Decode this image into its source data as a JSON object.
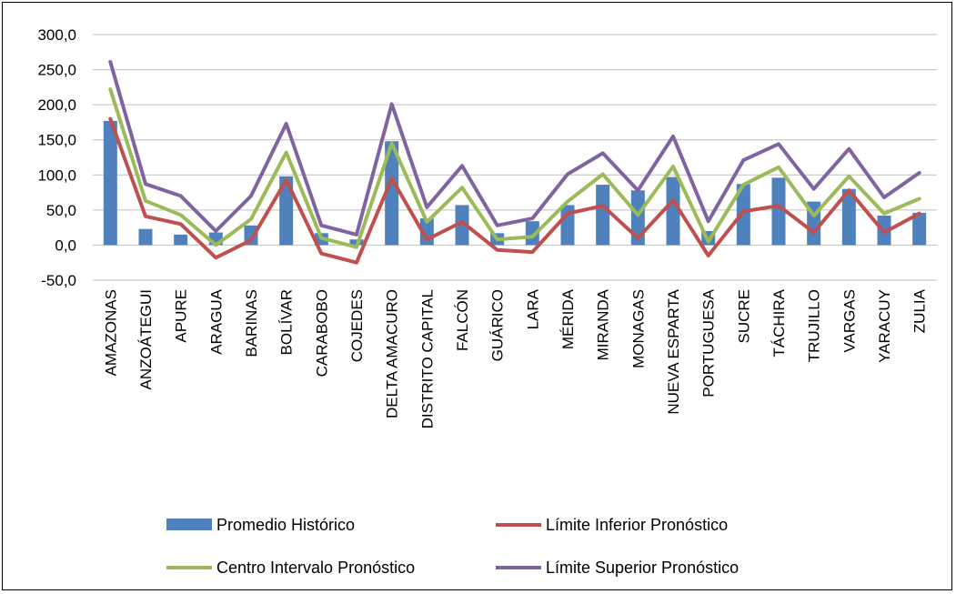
{
  "chart_data": {
    "type": "bar",
    "categories": [
      "AMAZONAS",
      "ANZOÁTEGUI",
      "APURE",
      "ARAGUA",
      "BARINAS",
      "BOLÍVAR",
      "CARABOBO",
      "COJEDES",
      "DELTA AMACURO",
      "DISTRITO CAPITAL",
      "FALCÓN",
      "GUÁRICO",
      "LARA",
      "MÉRIDA",
      "MIRANDA",
      "MONAGAS",
      "NUEVA ESPARTA",
      "PORTUGUESA",
      "SUCRE",
      "TÁCHIRA",
      "TRUJILLO",
      "VARGAS",
      "YARACUY",
      "ZULIA"
    ],
    "ylim": [
      -50,
      300
    ],
    "yticks": [
      -50,
      0,
      50,
      100,
      150,
      200,
      250,
      300
    ],
    "ytick_labels": [
      "-50,0",
      "0,0",
      "50,0",
      "100,0",
      "150,0",
      "200,0",
      "250,0",
      "300,0"
    ],
    "grid": true,
    "legend_position": "bottom",
    "series": [
      {
        "name": "Promedio Histórico",
        "kind": "bar",
        "color": "#4F81BD",
        "values": [
          177,
          23,
          15,
          18,
          28,
          98,
          17,
          8,
          148,
          38,
          57,
          17,
          34,
          57,
          86,
          78,
          97,
          20,
          87,
          96,
          62,
          80,
          42,
          46
        ]
      },
      {
        "name": "Límite Inferior Pronóstico",
        "kind": "line",
        "color": "#C0504D",
        "values": [
          180,
          41,
          30,
          -18,
          7,
          93,
          -12,
          -25,
          95,
          8,
          33,
          -7,
          -10,
          45,
          56,
          10,
          64,
          -15,
          48,
          56,
          18,
          78,
          18,
          45
        ]
      },
      {
        "name": "Centro Intervalo Pronóstico",
        "kind": "line",
        "color": "#9BBB59",
        "values": [
          222,
          63,
          43,
          0,
          37,
          132,
          10,
          -3,
          145,
          33,
          82,
          8,
          12,
          62,
          101,
          43,
          112,
          5,
          86,
          111,
          42,
          98,
          45,
          66
        ]
      },
      {
        "name": "Límite Superior Pronóstico",
        "kind": "line",
        "color": "#8064A2",
        "values": [
          261,
          87,
          70,
          20,
          70,
          173,
          28,
          15,
          201,
          54,
          113,
          28,
          38,
          101,
          131,
          78,
          155,
          34,
          121,
          144,
          80,
          137,
          68,
          103
        ]
      }
    ]
  }
}
